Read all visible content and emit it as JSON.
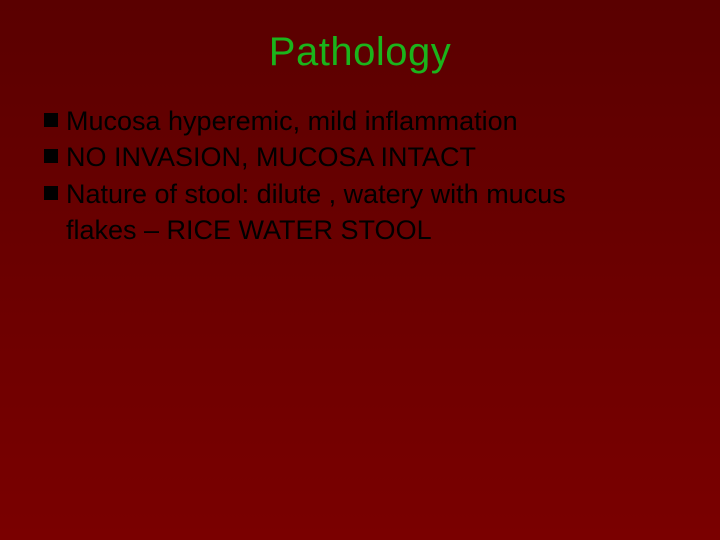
{
  "slide": {
    "title": "Pathology",
    "title_color": "#1bb41b",
    "title_fontsize": 40,
    "background_gradient": [
      "#5a0000",
      "#6b0000",
      "#7a0000"
    ],
    "bullet_color": "#000000",
    "bullet_size": 14,
    "text_color": "#000000",
    "text_fontsize": 27,
    "items": [
      {
        "text": "Mucosa hyperemic, mild inflammation"
      },
      {
        "text": "NO INVASION, MUCOSA INTACT"
      },
      {
        "text": "Nature of stool: dilute , watery with mucus"
      }
    ],
    "continuation": "flakes – RICE WATER STOOL"
  }
}
